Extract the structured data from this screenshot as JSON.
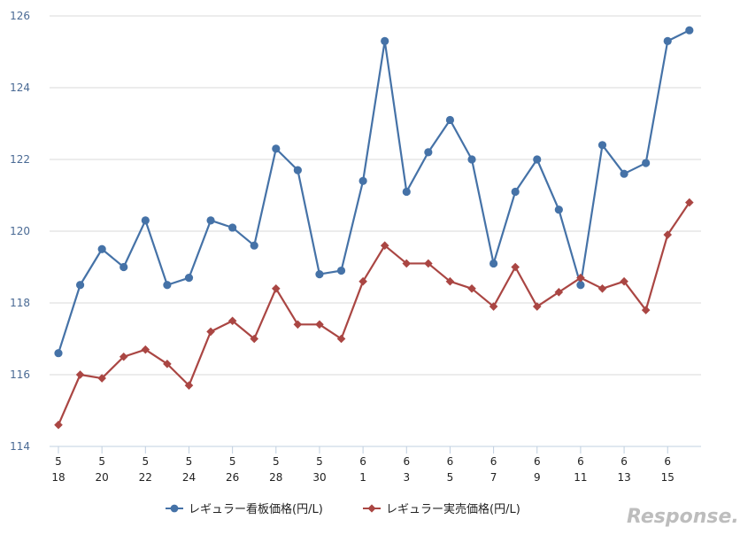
{
  "chart_data": {
    "type": "line",
    "x_month_labels": [
      "5",
      "",
      "5",
      "",
      "5",
      "",
      "5",
      "",
      "5",
      "",
      "5",
      "",
      "5",
      "",
      "6",
      "",
      "6",
      "",
      "6",
      "",
      "6",
      "",
      "6",
      "",
      "6",
      "",
      "6",
      "",
      "6",
      ""
    ],
    "x_day_labels": [
      "18",
      "",
      "20",
      "",
      "22",
      "",
      "24",
      "",
      "26",
      "",
      "28",
      "",
      "30",
      "",
      "1",
      "",
      "3",
      "",
      "5",
      "",
      "7",
      "",
      "9",
      "",
      "11",
      "",
      "13",
      "",
      "15",
      ""
    ],
    "ylim": [
      114,
      126
    ],
    "y_ticks": [
      "114",
      "116",
      "118",
      "120",
      "122",
      "124",
      "126"
    ],
    "grid": true,
    "legend_position": "bottom",
    "series": [
      {
        "name": "レギュラー看板価格(円/L)",
        "color": "#4572a7",
        "marker": "circle",
        "values": [
          116.6,
          118.5,
          119.5,
          119.0,
          120.3,
          118.5,
          118.7,
          120.3,
          120.1,
          119.6,
          122.3,
          121.7,
          118.8,
          118.9,
          121.4,
          125.3,
          121.1,
          122.2,
          123.1,
          122.0,
          119.1,
          121.1,
          122.0,
          120.6,
          118.5,
          122.4,
          121.6,
          121.9,
          125.3,
          125.6
        ]
      },
      {
        "name": "レギュラー実売価格(円/L)",
        "color": "#aa4643",
        "marker": "diamond",
        "values": [
          114.6,
          116.0,
          115.9,
          116.5,
          116.7,
          116.3,
          115.7,
          117.2,
          117.5,
          117.0,
          118.4,
          117.4,
          117.4,
          117.0,
          118.6,
          119.6,
          119.1,
          119.1,
          118.6,
          118.4,
          117.9,
          119.0,
          117.9,
          118.3,
          118.7,
          118.4,
          118.6,
          117.8,
          119.9,
          120.8
        ]
      }
    ]
  },
  "watermark": "Response."
}
